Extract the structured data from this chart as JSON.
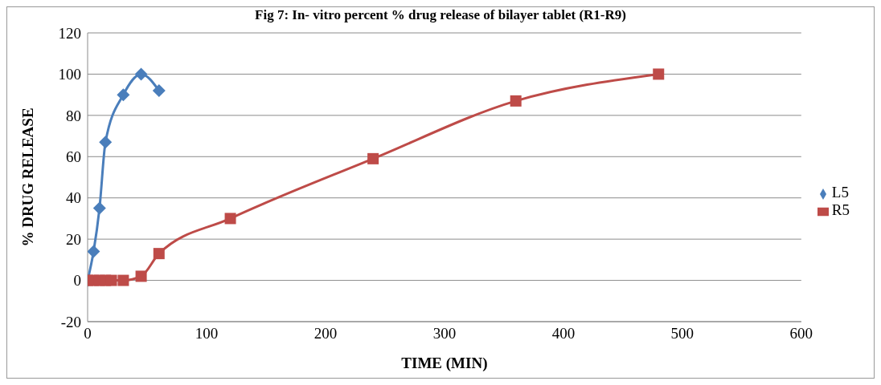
{
  "chart_data": {
    "type": "line",
    "title": "Fig 7: In- vitro percent  % drug release of bilayer tablet (R1-R9)",
    "xlabel": "TIME (MIN)",
    "ylabel": "% DRUG RELEASE",
    "series": [
      {
        "name": "L5",
        "color": "#4a7ebb",
        "marker": "diamond",
        "x": [
          0,
          5,
          10,
          15,
          30,
          45,
          60
        ],
        "values": [
          0,
          14,
          35,
          67,
          90,
          100,
          92
        ]
      },
      {
        "name": "R5",
        "color": "#be4b48",
        "marker": "square",
        "x": [
          0,
          5,
          10,
          15,
          20,
          30,
          45,
          60,
          120,
          240,
          360,
          480
        ],
        "values": [
          0,
          0,
          0,
          0,
          0,
          0,
          2,
          13,
          30,
          59,
          87,
          100
        ]
      }
    ],
    "xlim": [
      0,
      600
    ],
    "xticks": [
      0,
      100,
      200,
      300,
      400,
      500,
      600
    ],
    "ylim": [
      -20,
      120
    ],
    "yticks": [
      -20,
      0,
      20,
      40,
      60,
      80,
      100,
      120
    ],
    "grid": "y",
    "legend": "right",
    "line_style": "solid"
  }
}
